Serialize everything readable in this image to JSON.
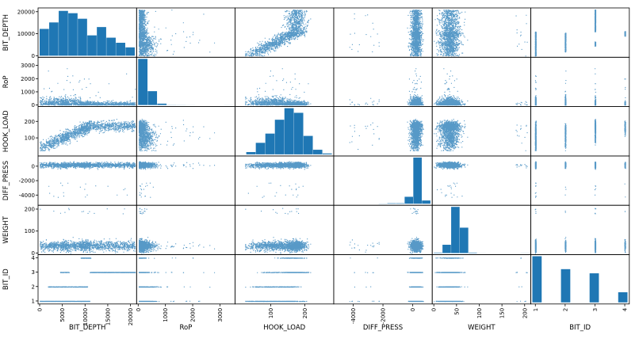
{
  "chart_data": {
    "type": "scatter-matrix",
    "title": "",
    "variables": [
      "BIT_DEPTH",
      "RoP",
      "HOOK_LOAD",
      "DIFF_PRESS",
      "WEIGHT",
      "BIT_ID"
    ],
    "color": "#1f77b4",
    "ranges": {
      "BIT_DEPTH": [
        0,
        21000
      ],
      "RoP": [
        0,
        3500
      ],
      "HOOK_LOAD": [
        0,
        280
      ],
      "DIFF_PRESS": [
        -5200,
        1200
      ],
      "WEIGHT": [
        0,
        210
      ],
      "BIT_ID": [
        0.9,
        4.1
      ]
    },
    "x_ticks": {
      "BIT_DEPTH": [
        "0",
        "5000",
        "10000",
        "15000",
        "20000"
      ],
      "RoP": [
        "0",
        "1000",
        "2000",
        "3000"
      ],
      "HOOK_LOAD": [
        "100",
        "200"
      ],
      "DIFF_PRESS": [
        "-4000",
        "-2000",
        "0"
      ],
      "WEIGHT": [
        "0",
        "50",
        "100",
        "150",
        "200"
      ],
      "BIT_ID": [
        "1",
        "2",
        "3",
        "4"
      ]
    },
    "y_ticks": {
      "BIT_DEPTH": [
        "0",
        "10000",
        "20000"
      ],
      "RoP": [
        "0",
        "1000",
        "2000",
        "3000"
      ],
      "HOOK_LOAD": [
        "100",
        "200"
      ],
      "DIFF_PRESS": [
        "-4000",
        "-2000",
        "0"
      ],
      "WEIGHT": [
        "0",
        "100",
        "200"
      ],
      "BIT_ID": [
        "1",
        "2",
        "3",
        "4"
      ]
    },
    "histograms": {
      "BIT_DEPTH": {
        "range": [
          0,
          21000
        ],
        "counts": [
          0.58,
          0.72,
          0.97,
          0.92,
          0.8,
          0.44,
          0.62,
          0.39,
          0.28,
          0.18
        ]
      },
      "RoP": {
        "range": [
          0,
          3500
        ],
        "counts": [
          1.0,
          0.3,
          0.03,
          0.003,
          0.002,
          0.001,
          0.0,
          0.0,
          0.0,
          0.001
        ]
      },
      "HOOK_LOAD": {
        "range": [
          0,
          280
        ],
        "counts": [
          0.0,
          0.05,
          0.25,
          0.45,
          0.75,
          1.0,
          0.9,
          0.4,
          0.1,
          0.02
        ]
      },
      "DIFF_PRESS": {
        "range": [
          -5200,
          1200
        ],
        "counts": [
          0.0,
          0.0,
          0.0,
          0.0,
          0.0,
          0.003,
          0.01,
          0.01,
          0.15,
          1.0,
          0.07
        ]
      },
      "WEIGHT": {
        "range": [
          0,
          210
        ],
        "counts": [
          0.01,
          0.18,
          1.0,
          0.55,
          0.01,
          0.001,
          0.0,
          0.0,
          0.0,
          0.0,
          0.002
        ]
      },
      "BIT_ID": {
        "range": [
          0.9,
          4.1
        ],
        "counts": [
          1.0,
          0.0,
          0.0,
          0.72,
          0.0,
          0.0,
          0.63,
          0.0,
          0.0,
          0.22
        ]
      }
    },
    "data_summary": {
      "BIT_DEPTH_segments": [
        {
          "bit_id": 1,
          "depth_range": [
            0,
            11000
          ]
        },
        {
          "bit_id": 2,
          "depth_range": [
            1800,
            10500
          ]
        },
        {
          "bit_id": 3,
          "depth_range": [
            4500,
            6500
          ]
        },
        {
          "bit_id": 3,
          "depth_range": [
            11000,
            21000
          ]
        },
        {
          "bit_id": 4,
          "depth_range": [
            9000,
            11200
          ]
        }
      ]
    }
  }
}
